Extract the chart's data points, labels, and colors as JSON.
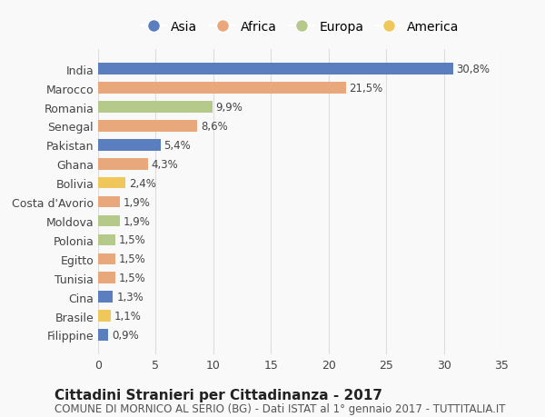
{
  "countries": [
    "India",
    "Marocco",
    "Romania",
    "Senegal",
    "Pakistan",
    "Ghana",
    "Bolivia",
    "Costa d'Avorio",
    "Moldova",
    "Polonia",
    "Egitto",
    "Tunisia",
    "Cina",
    "Brasile",
    "Filippine"
  ],
  "values": [
    30.8,
    21.5,
    9.9,
    8.6,
    5.4,
    4.3,
    2.4,
    1.9,
    1.9,
    1.5,
    1.5,
    1.5,
    1.3,
    1.1,
    0.9
  ],
  "labels": [
    "30,8%",
    "21,5%",
    "9,9%",
    "8,6%",
    "5,4%",
    "4,3%",
    "2,4%",
    "1,9%",
    "1,9%",
    "1,5%",
    "1,5%",
    "1,5%",
    "1,3%",
    "1,1%",
    "0,9%"
  ],
  "continents": [
    "Asia",
    "Africa",
    "Europa",
    "Africa",
    "Asia",
    "Africa",
    "America",
    "Africa",
    "Europa",
    "Europa",
    "Africa",
    "Africa",
    "Asia",
    "America",
    "Asia"
  ],
  "continent_colors": {
    "Asia": "#5b7fbe",
    "Africa": "#e8a87c",
    "Europa": "#b5c98a",
    "America": "#f0c75a"
  },
  "legend_order": [
    "Asia",
    "Africa",
    "Europa",
    "America"
  ],
  "title": "Cittadini Stranieri per Cittadinanza - 2017",
  "subtitle": "COMUNE DI MORNICO AL SERIO (BG) - Dati ISTAT al 1° gennaio 2017 - TUTTITALIA.IT",
  "xlim": [
    0,
    35
  ],
  "xticks": [
    0,
    5,
    10,
    15,
    20,
    25,
    30,
    35
  ],
  "background_color": "#f9f9f9",
  "grid_color": "#dddddd",
  "bar_height": 0.6,
  "title_fontsize": 11,
  "subtitle_fontsize": 8.5,
  "tick_fontsize": 9,
  "label_fontsize": 8.5,
  "legend_fontsize": 10
}
